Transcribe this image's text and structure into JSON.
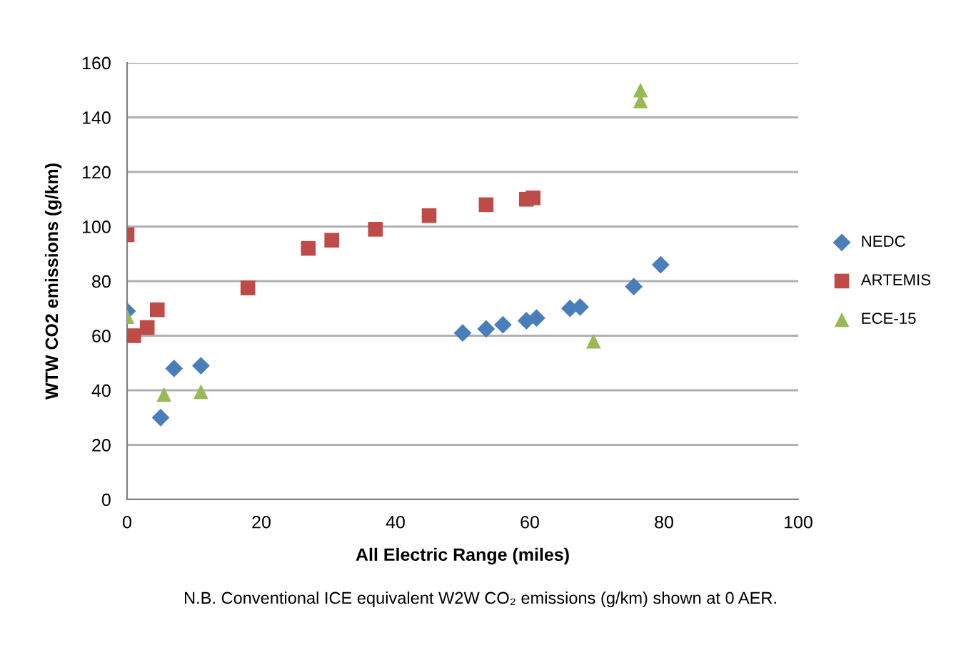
{
  "chart_data": {
    "type": "scatter",
    "xlabel": "All Electric Range (miles)",
    "ylabel": "WTW CO2 emissions (g/km)",
    "annotations": [
      "N.B. Conventional ICE equivalent W2W CO₂ emissions (g/km) shown at 0 AER."
    ],
    "xlim": [
      0,
      100
    ],
    "xticks": [
      0,
      20,
      40,
      60,
      80,
      100
    ],
    "ylim": [
      0,
      160
    ],
    "yticks": [
      0,
      20,
      40,
      60,
      80,
      100,
      120,
      140,
      160
    ],
    "grid": "y",
    "legend": "right",
    "series": [
      {
        "name": "NEDC",
        "color": "#4a7ebb",
        "marker": "diamond",
        "x": [
          0,
          5,
          7,
          11,
          50,
          53.5,
          56,
          59.5,
          61,
          66,
          67.5,
          75.5,
          79.5
        ],
        "values": [
          69,
          30,
          48,
          49,
          61,
          62.5,
          64,
          65.5,
          66.5,
          70,
          70.5,
          78,
          86
        ]
      },
      {
        "name": "ARTEMIS",
        "color": "#be4b48",
        "marker": "square",
        "x": [
          0,
          1,
          3,
          4.5,
          18,
          27,
          30.5,
          37,
          45,
          53.5,
          59.5,
          60.5
        ],
        "values": [
          97,
          60,
          63,
          69.5,
          77.5,
          92,
          95,
          99,
          104,
          108,
          110,
          110.5
        ]
      },
      {
        "name": "ECE-15",
        "color": "#98b954",
        "marker": "triangle",
        "x": [
          0,
          5.5,
          11,
          69.5,
          76.5,
          76.5
        ],
        "values": [
          67,
          38.5,
          39.5,
          58,
          150,
          146
        ]
      }
    ]
  }
}
